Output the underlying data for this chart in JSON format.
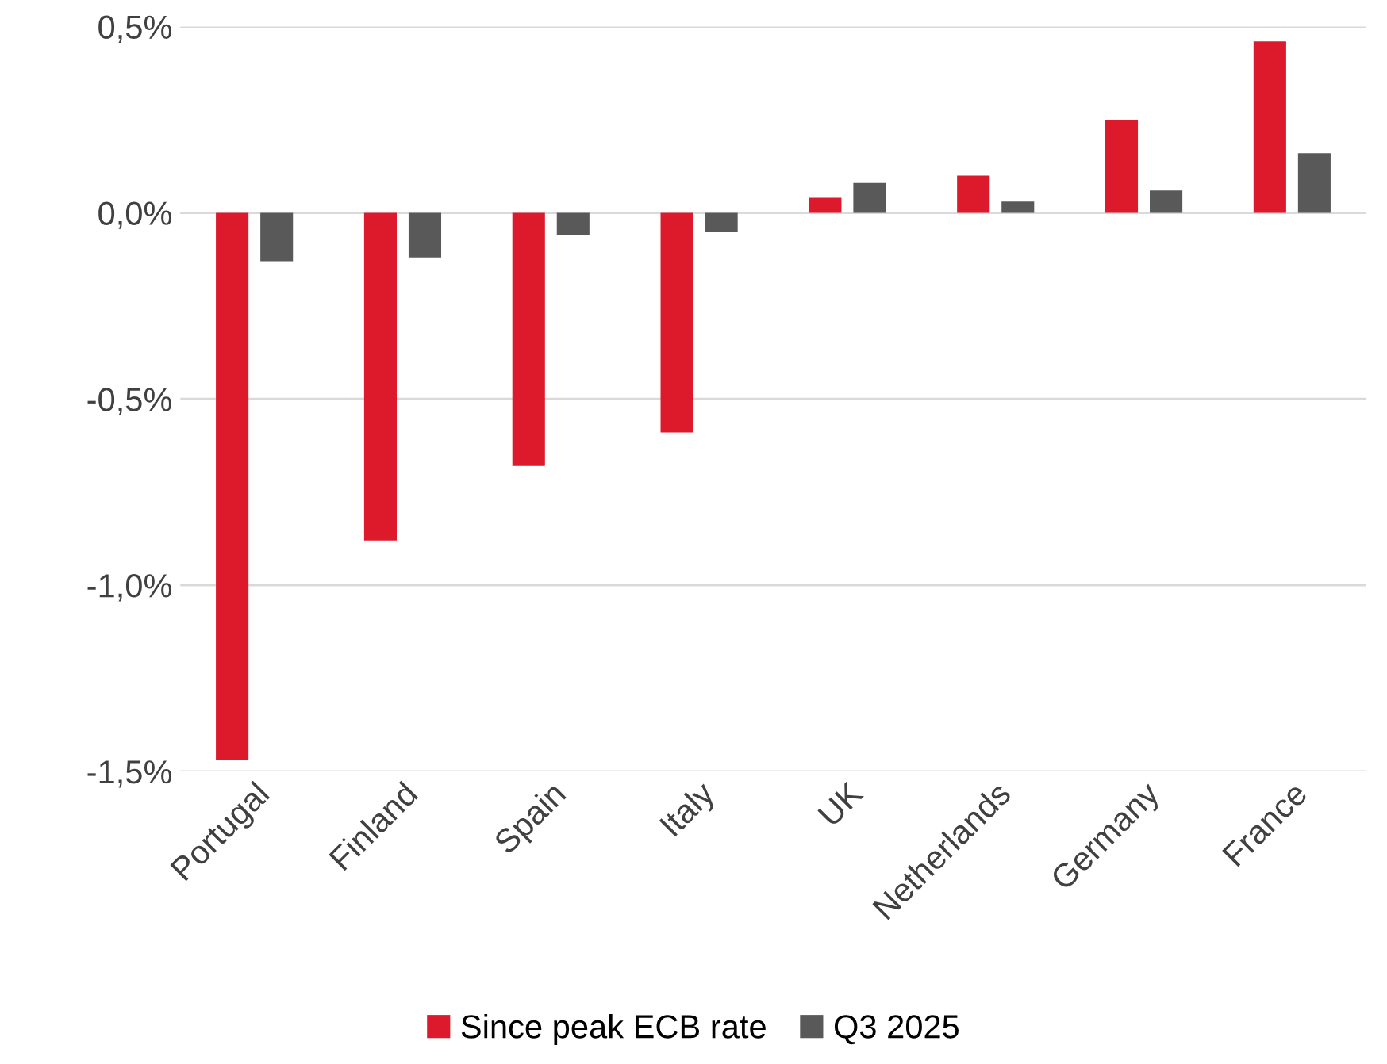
{
  "chart_data": {
    "type": "bar",
    "categories": [
      "Portugal",
      "Finland",
      "Spain",
      "Italy",
      "UK",
      "Netherlands",
      "Germany",
      "France"
    ],
    "series": [
      {
        "name": "Since peak ECB rate",
        "color": "#dc1a2b",
        "values": [
          -1.47,
          -0.88,
          -0.68,
          -0.59,
          0.04,
          0.1,
          0.25,
          0.46
        ]
      },
      {
        "name": "Q3 2025",
        "color": "#595959",
        "values": [
          -0.13,
          -0.12,
          -0.06,
          -0.05,
          0.08,
          0.03,
          0.06,
          0.16
        ]
      }
    ],
    "ylim": [
      -1.5,
      0.5
    ],
    "yticks": [
      {
        "value": -1.5,
        "label": "-1,5%"
      },
      {
        "value": -1.0,
        "label": "-1,0%"
      },
      {
        "value": -0.5,
        "label": "-0,5%"
      },
      {
        "value": 0.0,
        "label": "0,0%"
      },
      {
        "value": 0.5,
        "label": "0,5%"
      }
    ],
    "grid": "y",
    "legend": "bottom"
  }
}
